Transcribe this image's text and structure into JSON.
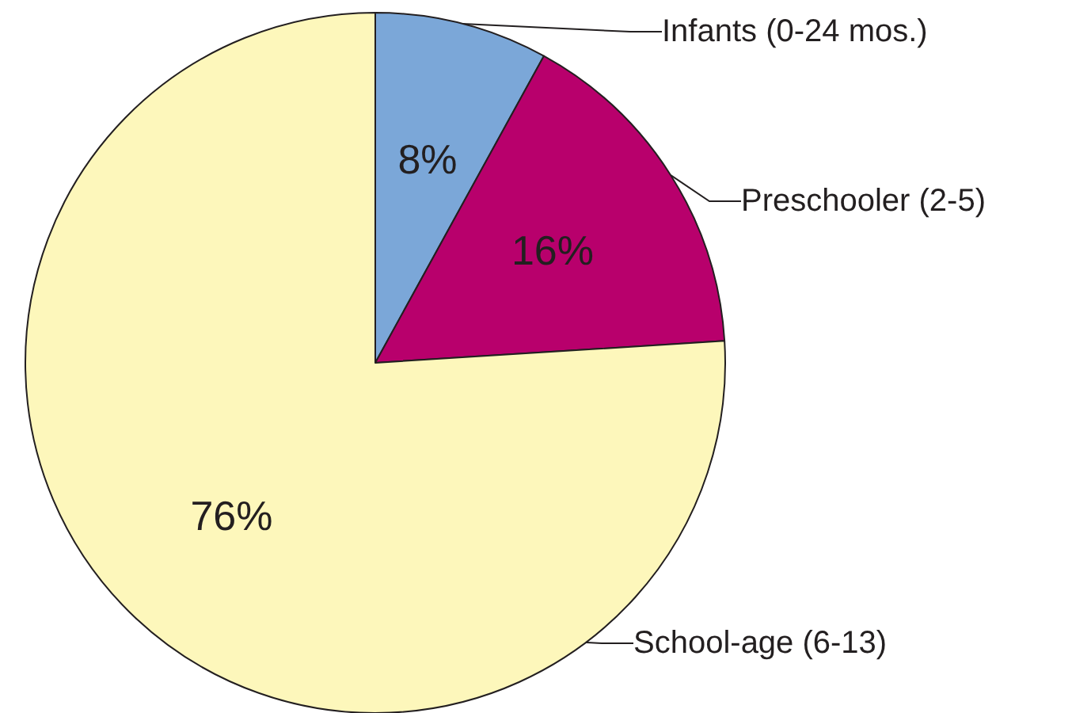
{
  "chart_data": {
    "type": "pie",
    "categories": [
      "Infants (0-24 mos.)",
      "Preschooler (2-5)",
      "School-age (6-13)"
    ],
    "values": [
      8,
      16,
      76
    ],
    "value_labels": [
      "8%",
      "16%",
      "76%"
    ],
    "colors": [
      "#7ba7d8",
      "#b8006c",
      "#fdf7bb"
    ],
    "legend": false
  }
}
